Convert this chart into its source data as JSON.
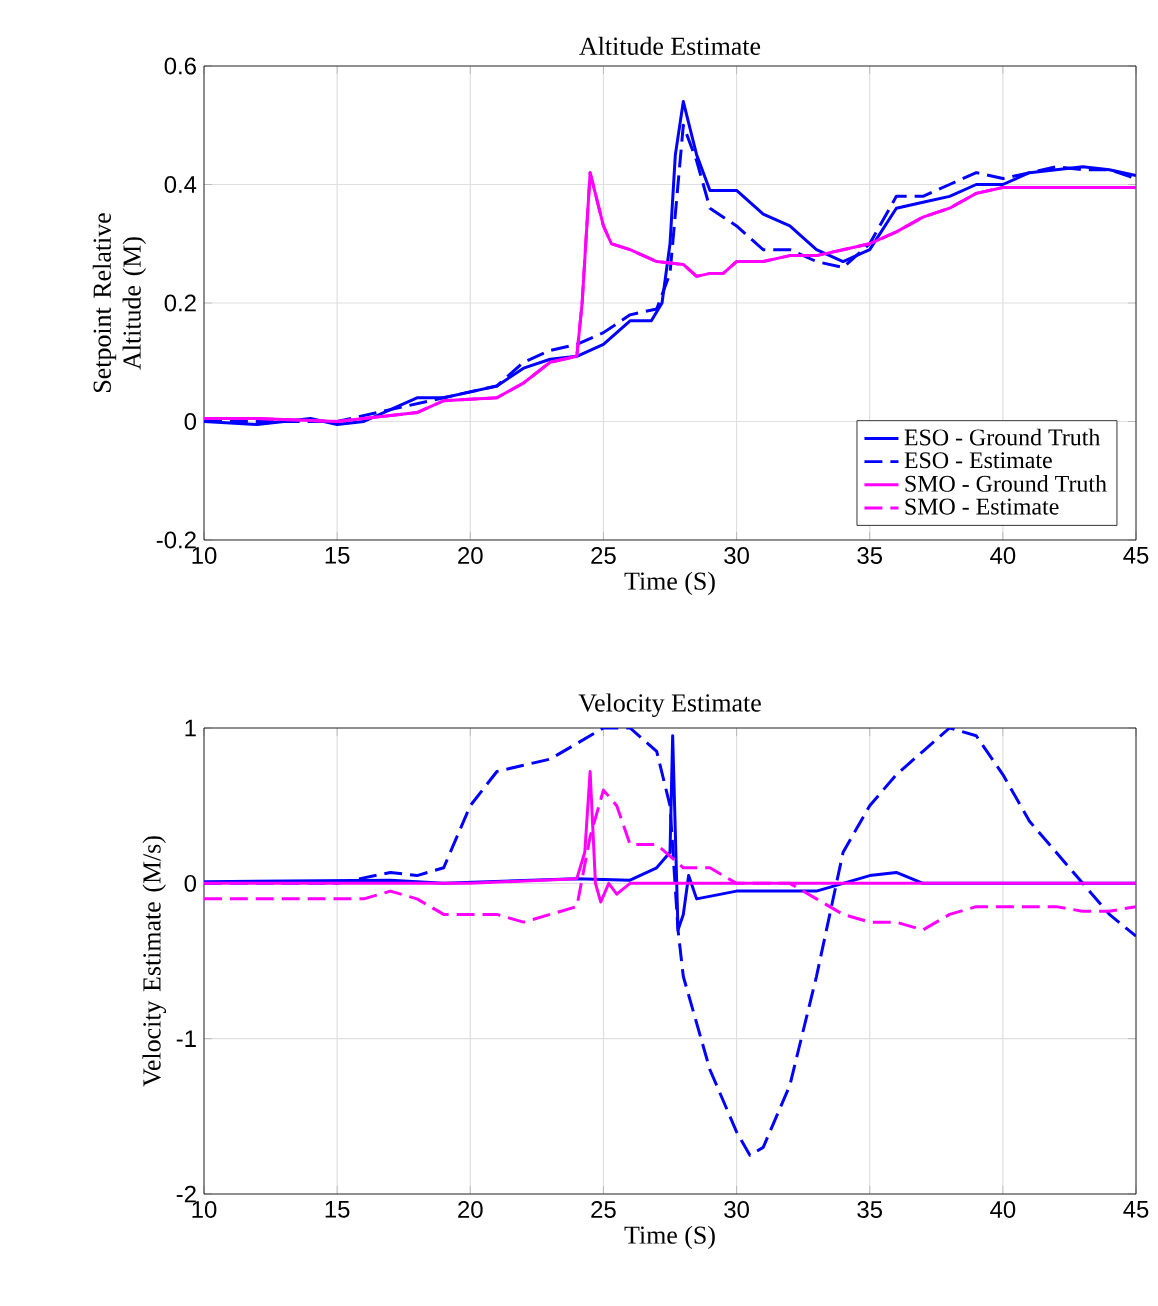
{
  "chart_data": [
    {
      "type": "line",
      "title": "Altitude Estimate",
      "xlabel": "Time (S)",
      "ylabel": "Setpoint Relative Altitude (M)",
      "xlim": [
        10,
        45
      ],
      "xticks": [
        10,
        15,
        20,
        25,
        30,
        35,
        40,
        45
      ],
      "ylim": [
        -0.2,
        0.6
      ],
      "yticks": [
        {
          "value": -0.2,
          "label": "-0.2"
        },
        0,
        0.2,
        0.4,
        0.6
      ],
      "grid": true,
      "legend": "bottom right",
      "series": [
        {
          "name": "ESO - Ground Truth",
          "color": "#0000ff",
          "line_style": "solid",
          "x": [
            10,
            12,
            14,
            15,
            16,
            17,
            18,
            19,
            20,
            21,
            22,
            23,
            24,
            25,
            26,
            26.8,
            27.2,
            27.5,
            27.7,
            28,
            28.5,
            29,
            30,
            31,
            32,
            33,
            34,
            35,
            36,
            37,
            38,
            39,
            40,
            41,
            42,
            43,
            44,
            45
          ],
          "values": [
            0,
            -0.005,
            0.005,
            -0.005,
            0,
            0.02,
            0.04,
            0.04,
            0.05,
            0.06,
            0.09,
            0.105,
            0.11,
            0.13,
            0.17,
            0.17,
            0.2,
            0.3,
            0.45,
            0.54,
            0.45,
            0.39,
            0.39,
            0.35,
            0.33,
            0.29,
            0.27,
            0.29,
            0.36,
            0.37,
            0.38,
            0.4,
            0.4,
            0.42,
            0.425,
            0.43,
            0.425,
            0.415
          ]
        },
        {
          "name": "ESO - Estimate",
          "color": "#0000ff",
          "line_style": "dashed",
          "x": [
            10,
            15,
            17,
            19,
            21,
            22,
            23,
            24,
            25,
            26,
            27,
            27.5,
            28,
            28.5,
            29,
            30,
            31,
            32,
            33,
            34,
            35,
            36,
            37,
            38,
            39,
            40,
            41,
            42,
            43,
            44,
            45
          ],
          "values": [
            0,
            0,
            0.02,
            0.04,
            0.06,
            0.1,
            0.12,
            0.13,
            0.15,
            0.18,
            0.19,
            0.25,
            0.5,
            0.44,
            0.36,
            0.33,
            0.29,
            0.29,
            0.27,
            0.26,
            0.3,
            0.38,
            0.38,
            0.4,
            0.42,
            0.41,
            0.42,
            0.43,
            0.425,
            0.425,
            0.41
          ]
        },
        {
          "name": "SMO - Ground Truth",
          "color": "#ff00ff",
          "line_style": "solid",
          "x": [
            10,
            12,
            15,
            17,
            18,
            19,
            21,
            22,
            23,
            24,
            24.2,
            24.5,
            25,
            25.3,
            26,
            27,
            28,
            28.5,
            29,
            29.5,
            30,
            31,
            32,
            33,
            34,
            35,
            36,
            37,
            38,
            39,
            40,
            42,
            45
          ],
          "values": [
            0.005,
            0.005,
            0,
            0.01,
            0.015,
            0.035,
            0.04,
            0.065,
            0.1,
            0.11,
            0.2,
            0.42,
            0.33,
            0.3,
            0.29,
            0.27,
            0.265,
            0.245,
            0.25,
            0.25,
            0.27,
            0.27,
            0.28,
            0.28,
            0.29,
            0.3,
            0.32,
            0.345,
            0.36,
            0.385,
            0.395,
            0.395,
            0.395
          ]
        },
        {
          "name": "SMO - Estimate",
          "color": "#ff00ff",
          "line_style": "dashed",
          "x": [
            10,
            12,
            15,
            17,
            18,
            19,
            21,
            22,
            23,
            24,
            24.2,
            24.5,
            25,
            25.3,
            26,
            27,
            28,
            28.5,
            29,
            29.5,
            30,
            31,
            32,
            33,
            34,
            35,
            36,
            37,
            38,
            39,
            40,
            42,
            45
          ],
          "values": [
            0.005,
            0.005,
            0,
            0.01,
            0.015,
            0.035,
            0.04,
            0.065,
            0.1,
            0.11,
            0.2,
            0.42,
            0.33,
            0.3,
            0.29,
            0.27,
            0.265,
            0.245,
            0.25,
            0.25,
            0.27,
            0.27,
            0.28,
            0.28,
            0.29,
            0.3,
            0.32,
            0.345,
            0.36,
            0.385,
            0.395,
            0.395,
            0.395
          ]
        }
      ]
    },
    {
      "type": "line",
      "title": "Velocity Estimate",
      "xlabel": "Time (S)",
      "ylabel": "Velocity Estimate (M/s)",
      "xlim": [
        10,
        45
      ],
      "xticks": [
        10,
        15,
        20,
        25,
        30,
        35,
        40,
        45
      ],
      "ylim": [
        -2,
        1
      ],
      "yticks": [
        -2,
        -1,
        0,
        1
      ],
      "grid": true,
      "series": [
        {
          "color": "#0000ff",
          "line_style": "solid",
          "x": [
            10,
            17,
            19,
            24,
            26,
            27,
            27.5,
            27.6,
            27.8,
            28,
            28.2,
            28.5,
            30,
            33,
            34,
            35,
            36,
            37,
            45
          ],
          "values": [
            0.01,
            0.02,
            0,
            0.03,
            0.02,
            0.1,
            0.2,
            0.95,
            -0.3,
            -0.2,
            0.05,
            -0.1,
            -0.05,
            -0.05,
            0,
            0.05,
            0.07,
            0,
            0
          ]
        },
        {
          "color": "#0000ff",
          "line_style": "dashed",
          "x": [
            10,
            15,
            17,
            18,
            19,
            20,
            21,
            22,
            23,
            24,
            25,
            26,
            27,
            27.5,
            27.8,
            28,
            29,
            30,
            30.5,
            31,
            32,
            33,
            34,
            35,
            36,
            37,
            38,
            39,
            40,
            41,
            42,
            43,
            44,
            45
          ],
          "values": [
            0,
            0,
            0.07,
            0.05,
            0.1,
            0.5,
            0.72,
            0.76,
            0.8,
            0.9,
            1,
            1,
            0.85,
            0.5,
            -0.3,
            -0.6,
            -1.2,
            -1.6,
            -1.75,
            -1.7,
            -1.3,
            -0.6,
            0.2,
            0.5,
            0.7,
            0.85,
            1,
            0.95,
            0.7,
            0.4,
            0.2,
            0,
            -0.2,
            -0.34
          ]
        },
        {
          "color": "#ff00ff",
          "line_style": "solid",
          "x": [
            10,
            20,
            24,
            24.3,
            24.5,
            24.7,
            24.9,
            25.2,
            25.5,
            26,
            27,
            45
          ],
          "values": [
            0,
            0,
            0.03,
            0.2,
            0.72,
            0,
            -0.12,
            0,
            -0.07,
            0,
            0,
            0
          ]
        },
        {
          "color": "#ff00ff",
          "line_style": "dashed",
          "x": [
            10,
            12,
            15,
            16,
            17,
            18,
            19,
            21,
            22,
            23,
            24,
            24.5,
            25,
            25.5,
            26,
            27,
            28,
            29,
            30,
            31,
            32,
            33,
            34,
            35,
            36,
            37,
            38,
            39,
            40,
            41,
            42,
            43,
            44,
            45
          ],
          "values": [
            -0.1,
            -0.1,
            -0.1,
            -0.1,
            -0.05,
            -0.1,
            -0.2,
            -0.2,
            -0.25,
            -0.2,
            -0.15,
            0.3,
            0.6,
            0.5,
            0.25,
            0.25,
            0.1,
            0.1,
            0,
            0,
            0,
            -0.1,
            -0.2,
            -0.25,
            -0.25,
            -0.3,
            -0.2,
            -0.15,
            -0.15,
            -0.15,
            -0.15,
            -0.18,
            -0.18,
            -0.15
          ]
        }
      ]
    }
  ]
}
